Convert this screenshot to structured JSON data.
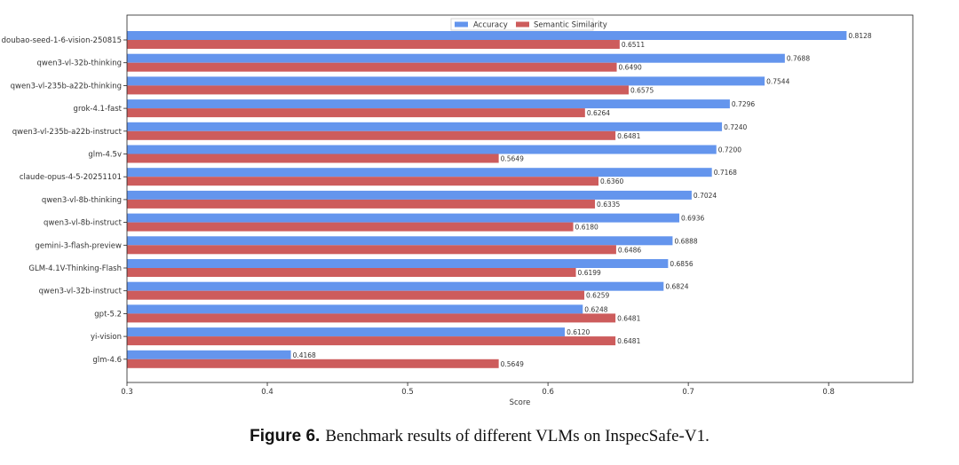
{
  "chart_data": {
    "type": "bar",
    "orientation": "horizontal",
    "xlabel": "Score",
    "xlim": [
      0.3,
      0.86
    ],
    "xticks": [
      "0.3",
      "0.4",
      "0.5",
      "0.6",
      "0.7",
      "0.8"
    ],
    "legend_position": "top-center",
    "categories": [
      "doubao-seed-1-6-vision-250815",
      "qwen3-vl-32b-thinking",
      "qwen3-vl-235b-a22b-thinking",
      "grok-4.1-fast",
      "qwen3-vl-235b-a22b-instruct",
      "glm-4.5v",
      "claude-opus-4-5-20251101",
      "qwen3-vl-8b-thinking",
      "qwen3-vl-8b-instruct",
      "gemini-3-flash-preview",
      "GLM-4.1V-Thinking-Flash",
      "qwen3-vl-32b-instruct",
      "gpt-5.2",
      "yi-vision",
      "glm-4.6"
    ],
    "series": [
      {
        "name": "Accuracy",
        "color": "#6495ed",
        "values": [
          0.8128,
          0.7688,
          0.7544,
          0.7296,
          0.724,
          0.72,
          0.7168,
          0.7024,
          0.6936,
          0.6888,
          0.6856,
          0.6824,
          0.6248,
          0.612,
          0.4168
        ],
        "labels": [
          "0.8128",
          "0.7688",
          "0.7544",
          "0.7296",
          "0.7240",
          "0.7200",
          "0.7168",
          "0.7024",
          "0.6936",
          "0.6888",
          "0.6856",
          "0.6824",
          "0.6248",
          "0.6120",
          "0.4168"
        ]
      },
      {
        "name": "Semantic Similarity",
        "color": "#cd5c5c",
        "values": [
          0.6511,
          0.649,
          0.6575,
          0.6264,
          0.6481,
          0.5649,
          0.636,
          0.6335,
          0.618,
          0.6486,
          0.6199,
          0.6259,
          0.6481,
          0.6481,
          0.5649
        ],
        "labels": [
          "0.6511",
          "0.6490",
          "0.6575",
          "0.6264",
          "0.6481",
          "0.5649",
          "0.6360",
          "0.6335",
          "0.6180",
          "0.6486",
          "0.6199",
          "0.6259",
          "0.6481",
          "0.6481",
          "0.5649"
        ]
      }
    ]
  },
  "caption": {
    "label": "Figure 6.",
    "text": "Benchmark results of different VLMs on InspecSafe-V1."
  }
}
